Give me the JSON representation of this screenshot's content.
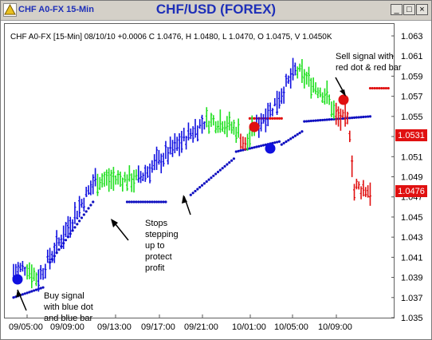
{
  "window": {
    "title": "CHF/USD (FOREX)",
    "label": "CHF A0-FX 15-Min",
    "minimize_icon": "minimize-icon",
    "maximize_icon": "maximize-icon",
    "close_icon": "close-icon",
    "colors": {
      "titlebar": "#d4d0c8",
      "title_text": "#1e2fb8"
    }
  },
  "chart_info": {
    "text": "CHF A0-FX [15-Min] 08/10/10 +0.0006 C 1.0476, H 1.0480, L 1.0470, O 1.0475, V 1.0450K"
  },
  "annotations": {
    "buy": [
      "Buy signal",
      "with blue dot",
      "and blue bar"
    ],
    "stops": [
      "Stops",
      "stepping",
      "up to",
      "protect",
      "profit"
    ],
    "sell": [
      "Sell signal with",
      "red dot & red bar"
    ]
  },
  "price_tags": {
    "stop": "1.0531",
    "last": "1.0476",
    "color": "#e01010"
  },
  "chart_data": {
    "type": "bar",
    "title": "CHF/USD (FOREX)",
    "x_tick_labels": [
      "09/05:00",
      "09/09:00",
      "09/13:00",
      "09/17:00",
      "09/21:00",
      "10/01:00",
      "10/05:00",
      "10/09:00"
    ],
    "y_tick_labels": [
      "1.063",
      "1.061",
      "1.059",
      "1.057",
      "1.055",
      "1.053",
      "1.051",
      "1.049",
      "1.047",
      "1.045",
      "1.043",
      "1.041",
      "1.039",
      "1.037",
      "1.035"
    ],
    "ylim": [
      1.035,
      1.0635
    ],
    "colors": {
      "up": "#1010e0",
      "neutral": "#20e020",
      "down": "#e01010",
      "stop_blue": "#1010c0",
      "stop_red": "#e01010"
    },
    "bar_segments": [
      {
        "count": 6,
        "from": 1.0395,
        "to": 1.04,
        "trend": "up"
      },
      {
        "count": 5,
        "from": 1.04,
        "to": 1.039,
        "trend": "neutral"
      },
      {
        "count": 26,
        "from": 1.039,
        "to": 1.0487,
        "trend": "up"
      },
      {
        "count": 18,
        "from": 1.0487,
        "to": 1.0488,
        "trend": "neutral"
      },
      {
        "count": 30,
        "from": 1.0488,
        "to": 1.0545,
        "trend": "up"
      },
      {
        "count": 7,
        "from": 1.0545,
        "to": 1.0545,
        "trend": "neutral"
      },
      {
        "count": 8,
        "from": 1.0545,
        "to": 1.0535,
        "trend": "neutral"
      },
      {
        "count": 3,
        "from": 1.053,
        "to": 1.052,
        "trend": "down"
      },
      {
        "count": 4,
        "from": 1.0525,
        "to": 1.054,
        "trend": "neutral"
      },
      {
        "count": 6,
        "from": 1.054,
        "to": 1.0555,
        "trend": "up"
      },
      {
        "count": 12,
        "from": 1.0555,
        "to": 1.0595,
        "trend": "up"
      },
      {
        "count": 14,
        "from": 1.0595,
        "to": 1.057,
        "trend": "neutral"
      },
      {
        "count": 3,
        "from": 1.0565,
        "to": 1.0555,
        "trend": "neutral"
      },
      {
        "count": 6,
        "from": 1.055,
        "to": 1.0545,
        "trend": "down"
      },
      {
        "count": 3,
        "from": 1.0535,
        "to": 1.0475,
        "trend": "down"
      },
      {
        "count": 7,
        "from": 1.048,
        "to": 1.0476,
        "trend": "down"
      }
    ],
    "stop_segments": [
      {
        "count": 14,
        "from": 1.037,
        "to": 1.038,
        "color": "blue"
      },
      {
        "count": 20,
        "from": 1.0405,
        "to": 1.0465,
        "color": "blue"
      },
      {
        "count": 18,
        "from": 1.0465,
        "to": 1.0465,
        "color": "blue"
      },
      {
        "count": 20,
        "from": 1.0472,
        "to": 1.0508,
        "color": "blue"
      },
      {
        "count": 20,
        "from": 1.0515,
        "to": 1.0525,
        "color": "blue"
      },
      {
        "count": 15,
        "from": 1.0548,
        "to": 1.0548,
        "color": "red"
      },
      {
        "count": 10,
        "from": 1.0522,
        "to": 1.0535,
        "color": "blue"
      },
      {
        "count": 30,
        "from": 1.0545,
        "to": 1.055,
        "color": "blue"
      },
      {
        "count": 12,
        "from": 1.0578,
        "to": 1.0578,
        "color": "red"
      }
    ],
    "signals": [
      {
        "type": "buy",
        "price": 1.039,
        "bar": 1
      },
      {
        "type": "sell",
        "price": 1.0542,
        "bar": 106
      },
      {
        "type": "buy",
        "price": 1.0518,
        "bar": 116
      },
      {
        "type": "sell",
        "price": 1.057,
        "bar": 153
      }
    ]
  }
}
